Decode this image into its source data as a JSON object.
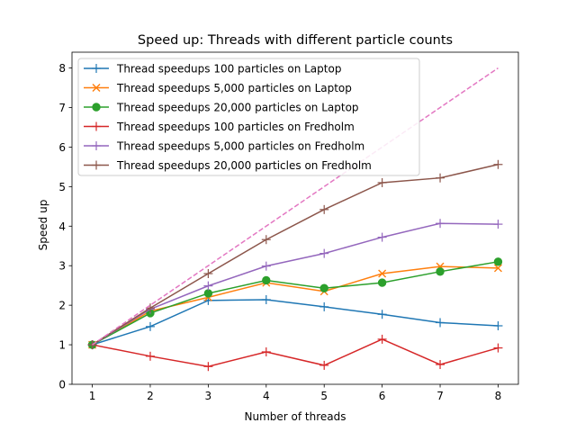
{
  "chart_data": {
    "type": "line",
    "title": "Speed up: Threads with different particle counts",
    "xlabel": "Number of threads",
    "ylabel": "Speed up",
    "xlim": [
      0.65,
      8.35
    ],
    "ylim": [
      0,
      8.4
    ],
    "x": [
      1,
      2,
      3,
      4,
      5,
      6,
      7,
      8
    ],
    "xticks": [
      "1",
      "2",
      "3",
      "4",
      "5",
      "6",
      "7",
      "8"
    ],
    "yticks": [
      "0",
      "1",
      "2",
      "3",
      "4",
      "5",
      "6",
      "7",
      "8"
    ],
    "grid": false,
    "legend_position": "upper left",
    "series": [
      {
        "name": "Thread speedups 100 particles on Laptop",
        "color": "#1f77b4",
        "marker": "plus",
        "values": [
          1.0,
          1.46,
          2.12,
          2.14,
          1.96,
          1.77,
          1.56,
          1.48
        ]
      },
      {
        "name": "Thread speedups 5,000 particles on Laptop",
        "color": "#ff7f0e",
        "marker": "x",
        "values": [
          1.0,
          1.85,
          2.2,
          2.57,
          2.35,
          2.8,
          2.98,
          2.94
        ]
      },
      {
        "name": "Thread speedups 20,000 particles on Laptop",
        "color": "#2ca02c",
        "marker": "circle",
        "values": [
          1.0,
          1.8,
          2.3,
          2.63,
          2.43,
          2.57,
          2.85,
          3.1
        ]
      },
      {
        "name": "Thread speedups 100 particles on Fredholm",
        "color": "#d62728",
        "marker": "plus",
        "values": [
          1.0,
          0.71,
          0.45,
          0.82,
          0.48,
          1.14,
          0.5,
          0.92
        ]
      },
      {
        "name": "Thread speedups 5,000 particles on Fredholm",
        "color": "#9467bd",
        "marker": "plus",
        "values": [
          1.0,
          1.9,
          2.49,
          2.99,
          3.31,
          3.72,
          4.07,
          4.05
        ]
      },
      {
        "name": "Thread speedups 20,000 particles on Fredholm",
        "color": "#8c564b",
        "marker": "plus",
        "values": [
          1.0,
          1.93,
          2.8,
          3.66,
          4.42,
          5.1,
          5.22,
          5.56
        ]
      }
    ],
    "reference_line": {
      "color": "#e377c2",
      "style": "dashed",
      "values": [
        1,
        2,
        3,
        4,
        5,
        6,
        7,
        8
      ]
    }
  }
}
